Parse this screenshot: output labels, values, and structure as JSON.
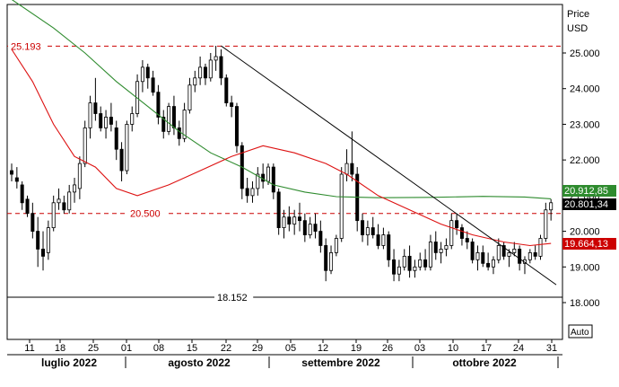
{
  "chart_data": {
    "type": "candlestick",
    "axis": {
      "title": "Price",
      "unit": "USD",
      "ymin": 17.5,
      "ymax": 26.2,
      "ticks": [
        "25.000",
        "24.000",
        "23.000",
        "22.000",
        "21.000",
        "20.000",
        "19.000",
        "18.000"
      ]
    },
    "auto_label": "Auto",
    "x_days": [
      "11",
      "18",
      "25",
      "01",
      "08",
      "15",
      "22",
      "29",
      "05",
      "12",
      "19",
      "26",
      "03",
      "10",
      "17",
      "24",
      "31"
    ],
    "months": [
      "luglio 2022",
      "agosto 2022",
      "settembre 2022",
      "ottobre 2022"
    ],
    "hlines": [
      {
        "value": 25.193,
        "label": "25.193",
        "style": "dashed",
        "color": "#cc0000"
      },
      {
        "value": 20.5,
        "label": "20.500",
        "style": "dashed",
        "color": "#cc0000"
      },
      {
        "value": 18.152,
        "label": "18.152",
        "style": "solid",
        "color": "#000000"
      }
    ],
    "badges": [
      {
        "value": 20.91285,
        "label": "20.912,85",
        "color": "#2e8b2e"
      },
      {
        "value": 20.80134,
        "label": "20.801,34",
        "color": "#000000"
      },
      {
        "value": 19.66413,
        "label": "19.664,13",
        "color": "#cc0000"
      }
    ],
    "ohlc": [
      [
        21.7,
        21.9,
        21.4,
        21.6
      ],
      [
        21.5,
        21.8,
        21.2,
        21.4
      ],
      [
        21.3,
        21.4,
        20.6,
        20.8
      ],
      [
        20.9,
        21.0,
        20.4,
        20.5
      ],
      [
        20.5,
        20.8,
        19.8,
        20.0
      ],
      [
        20.0,
        20.4,
        19.0,
        19.5
      ],
      [
        19.5,
        20.0,
        18.9,
        19.3
      ],
      [
        19.4,
        20.3,
        19.2,
        20.1
      ],
      [
        20.1,
        21.0,
        20.0,
        20.8
      ],
      [
        20.8,
        21.2,
        20.6,
        20.9
      ],
      [
        20.8,
        21.0,
        20.5,
        20.6
      ],
      [
        20.6,
        21.3,
        20.5,
        21.1
      ],
      [
        21.1,
        21.5,
        20.8,
        21.3
      ],
      [
        21.2,
        22.1,
        20.9,
        21.9
      ],
      [
        21.9,
        23.1,
        21.8,
        22.9
      ],
      [
        22.9,
        23.8,
        22.6,
        23.6
      ],
      [
        23.6,
        24.3,
        23.1,
        23.3
      ],
      [
        23.3,
        23.5,
        22.8,
        22.9
      ],
      [
        22.9,
        23.4,
        22.6,
        23.2
      ],
      [
        23.2,
        23.6,
        22.8,
        23.0
      ],
      [
        22.9,
        23.1,
        22.0,
        22.3
      ],
      [
        22.3,
        22.5,
        21.4,
        21.7
      ],
      [
        21.7,
        23.1,
        21.6,
        23.0
      ],
      [
        23.0,
        23.5,
        22.8,
        23.3
      ],
      [
        23.3,
        24.4,
        23.2,
        24.2
      ],
      [
        24.2,
        24.8,
        23.9,
        24.6
      ],
      [
        24.6,
        24.7,
        24.0,
        24.3
      ],
      [
        24.3,
        24.5,
        23.8,
        23.9
      ],
      [
        23.9,
        24.1,
        23.0,
        23.2
      ],
      [
        23.2,
        23.4,
        22.6,
        22.8
      ],
      [
        22.8,
        23.6,
        22.7,
        23.5
      ],
      [
        23.5,
        23.8,
        22.7,
        22.9
      ],
      [
        22.9,
        23.1,
        22.4,
        22.6
      ],
      [
        22.6,
        23.6,
        22.5,
        23.4
      ],
      [
        23.4,
        24.3,
        23.3,
        24.1
      ],
      [
        24.1,
        24.5,
        23.9,
        24.3
      ],
      [
        24.3,
        24.9,
        24.1,
        24.6
      ],
      [
        24.6,
        24.7,
        24.1,
        24.3
      ],
      [
        24.3,
        25.0,
        24.2,
        24.8
      ],
      [
        24.8,
        25.2,
        24.5,
        24.9
      ],
      [
        24.9,
        25.1,
        24.1,
        24.3
      ],
      [
        24.3,
        24.4,
        23.5,
        23.6
      ],
      [
        23.6,
        23.8,
        23.2,
        23.5
      ],
      [
        23.5,
        23.6,
        22.2,
        22.4
      ],
      [
        22.4,
        22.5,
        20.9,
        21.2
      ],
      [
        21.2,
        21.5,
        20.8,
        21.0
      ],
      [
        21.0,
        21.4,
        20.8,
        21.2
      ],
      [
        21.2,
        21.8,
        21.0,
        21.6
      ],
      [
        21.6,
        21.9,
        21.2,
        21.4
      ],
      [
        21.4,
        21.9,
        21.3,
        21.8
      ],
      [
        21.8,
        21.9,
        20.9,
        21.1
      ],
      [
        21.1,
        21.2,
        19.9,
        20.1
      ],
      [
        20.1,
        20.6,
        19.8,
        20.4
      ],
      [
        20.4,
        20.7,
        20.0,
        20.2
      ],
      [
        20.2,
        20.6,
        19.9,
        20.4
      ],
      [
        20.4,
        20.8,
        20.0,
        20.3
      ],
      [
        20.3,
        20.5,
        19.7,
        19.9
      ],
      [
        19.9,
        20.4,
        19.8,
        20.2
      ],
      [
        20.2,
        20.5,
        19.8,
        20.0
      ],
      [
        20.0,
        20.3,
        19.4,
        19.6
      ],
      [
        19.6,
        19.8,
        18.6,
        18.9
      ],
      [
        18.9,
        19.6,
        18.8,
        19.4
      ],
      [
        19.4,
        19.9,
        19.3,
        19.8
      ],
      [
        19.8,
        21.8,
        19.7,
        21.6
      ],
      [
        21.6,
        22.3,
        21.4,
        21.9
      ],
      [
        21.9,
        22.8,
        21.4,
        21.6
      ],
      [
        21.6,
        21.8,
        20.0,
        20.3
      ],
      [
        20.3,
        20.5,
        19.7,
        19.9
      ],
      [
        19.9,
        20.3,
        19.6,
        20.1
      ],
      [
        20.1,
        20.4,
        19.8,
        19.9
      ],
      [
        19.9,
        20.2,
        19.5,
        19.6
      ],
      [
        19.6,
        20.1,
        19.5,
        19.9
      ],
      [
        19.9,
        20.0,
        19.0,
        19.2
      ],
      [
        19.2,
        19.5,
        18.6,
        18.8
      ],
      [
        18.8,
        19.2,
        18.6,
        19.0
      ],
      [
        19.0,
        19.5,
        18.9,
        19.3
      ],
      [
        19.3,
        19.6,
        18.7,
        18.9
      ],
      [
        18.9,
        19.2,
        18.7,
        19.0
      ],
      [
        19.0,
        19.4,
        18.9,
        19.2
      ],
      [
        19.2,
        19.5,
        18.9,
        19.0
      ],
      [
        19.0,
        19.9,
        18.9,
        19.7
      ],
      [
        19.7,
        20.0,
        19.2,
        19.4
      ],
      [
        19.4,
        19.7,
        19.1,
        19.5
      ],
      [
        19.5,
        19.8,
        19.3,
        19.6
      ],
      [
        19.6,
        20.5,
        19.5,
        20.3
      ],
      [
        20.3,
        20.5,
        19.9,
        20.1
      ],
      [
        20.1,
        20.2,
        19.6,
        19.8
      ],
      [
        19.8,
        20.0,
        19.5,
        19.7
      ],
      [
        19.7,
        19.8,
        19.1,
        19.2
      ],
      [
        19.2,
        19.6,
        18.9,
        19.4
      ],
      [
        19.4,
        19.6,
        19.0,
        19.1
      ],
      [
        19.1,
        19.4,
        18.9,
        19.0
      ],
      [
        19.0,
        19.3,
        18.8,
        19.2
      ],
      [
        19.2,
        19.8,
        19.1,
        19.6
      ],
      [
        19.6,
        19.7,
        19.2,
        19.3
      ],
      [
        19.3,
        19.5,
        19.0,
        19.4
      ],
      [
        19.4,
        19.7,
        19.3,
        19.5
      ],
      [
        19.5,
        19.6,
        18.9,
        19.1
      ],
      [
        19.1,
        19.3,
        18.8,
        19.2
      ],
      [
        19.2,
        19.5,
        19.1,
        19.4
      ],
      [
        19.4,
        19.6,
        19.2,
        19.3
      ],
      [
        19.3,
        19.9,
        19.2,
        19.8
      ],
      [
        19.8,
        20.8,
        19.7,
        20.6
      ],
      [
        20.6,
        20.9,
        20.3,
        20.8
      ]
    ],
    "sma_green": [
      [
        0,
        26.5
      ],
      [
        8,
        25.7
      ],
      [
        14,
        25.0
      ],
      [
        20,
        24.2
      ],
      [
        26,
        23.5
      ],
      [
        32,
        22.8
      ],
      [
        38,
        22.2
      ],
      [
        44,
        21.8
      ],
      [
        50,
        21.3
      ],
      [
        56,
        21.1
      ],
      [
        62,
        20.97
      ],
      [
        70,
        20.94
      ],
      [
        80,
        20.95
      ],
      [
        90,
        20.98
      ],
      [
        98,
        20.96
      ],
      [
        103,
        20.91
      ]
    ],
    "sma_red": [
      [
        0,
        25.1
      ],
      [
        4,
        24.2
      ],
      [
        8,
        23.0
      ],
      [
        12,
        22.1
      ],
      [
        16,
        21.8
      ],
      [
        20,
        21.2
      ],
      [
        24,
        21.0
      ],
      [
        30,
        21.3
      ],
      [
        36,
        21.7
      ],
      [
        42,
        22.1
      ],
      [
        48,
        22.4
      ],
      [
        54,
        22.2
      ],
      [
        60,
        21.9
      ],
      [
        64,
        21.6
      ],
      [
        70,
        21.0
      ],
      [
        76,
        20.6
      ],
      [
        82,
        20.2
      ],
      [
        88,
        19.9
      ],
      [
        94,
        19.7
      ],
      [
        99,
        19.6
      ],
      [
        103,
        19.66
      ]
    ],
    "trendline": {
      "from": [
        40,
        25.2
      ],
      "to": [
        104,
        18.5
      ]
    }
  }
}
